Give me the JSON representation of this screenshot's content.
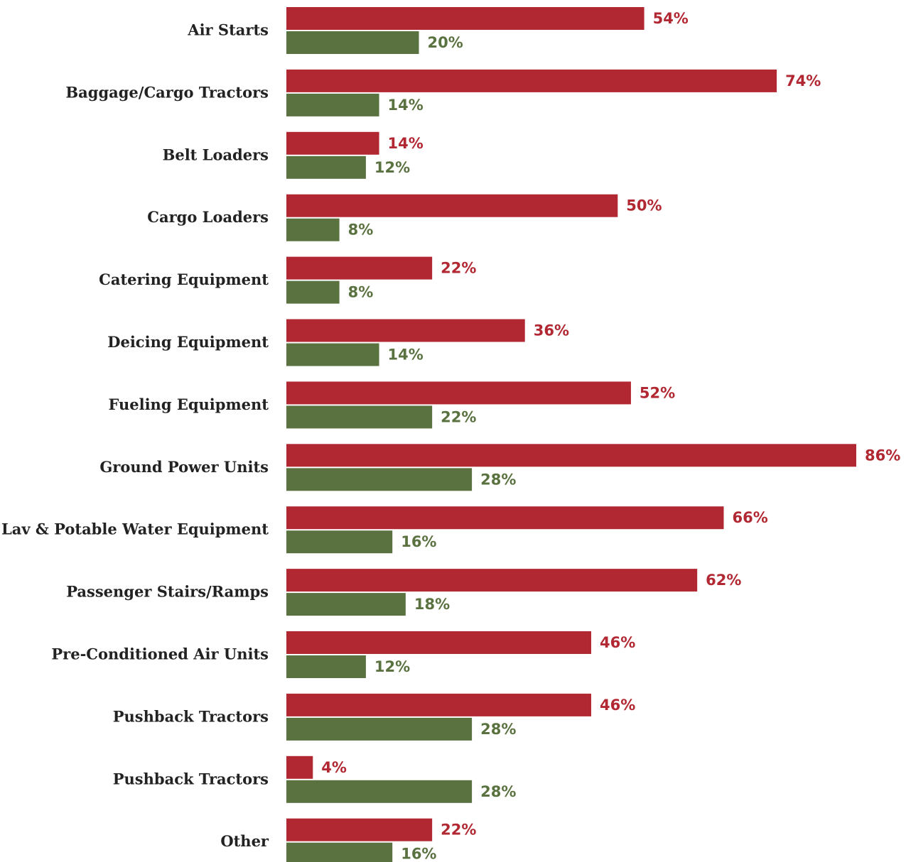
{
  "chart_data": {
    "type": "bar",
    "orientation": "horizontal",
    "categories": [
      "Air Starts",
      "Baggage/Cargo Tractors",
      "Belt Loaders",
      "Cargo Loaders",
      "Catering Equipment",
      "Deicing Equipment",
      "Fueling Equipment",
      "Ground Power Units",
      "Lav & Potable Water Equipment",
      "Passenger Stairs/Ramps",
      "Pre-Conditioned Air Units",
      "Pushback Tractors",
      "Pushback Tractors",
      "Other"
    ],
    "series": [
      {
        "color": "#b22832",
        "values": [
          54,
          74,
          14,
          50,
          22,
          36,
          52,
          86,
          66,
          62,
          46,
          46,
          4,
          22
        ],
        "value_labels": [
          "54%",
          "74%",
          "14%",
          "50%",
          "22%",
          "36%",
          "52%",
          "86%",
          "66%",
          "62%",
          "46%",
          "46%",
          "4%",
          "22%"
        ]
      },
      {
        "color": "#5a7140",
        "values": [
          20,
          14,
          12,
          8,
          8,
          14,
          22,
          28,
          16,
          18,
          12,
          28,
          28,
          16
        ],
        "value_labels": [
          "20%",
          "14%",
          "12%",
          "8%",
          "8%",
          "14%",
          "22%",
          "28%",
          "16%",
          "18%",
          "12%",
          "28%",
          "28%",
          "16%"
        ]
      }
    ]
  }
}
